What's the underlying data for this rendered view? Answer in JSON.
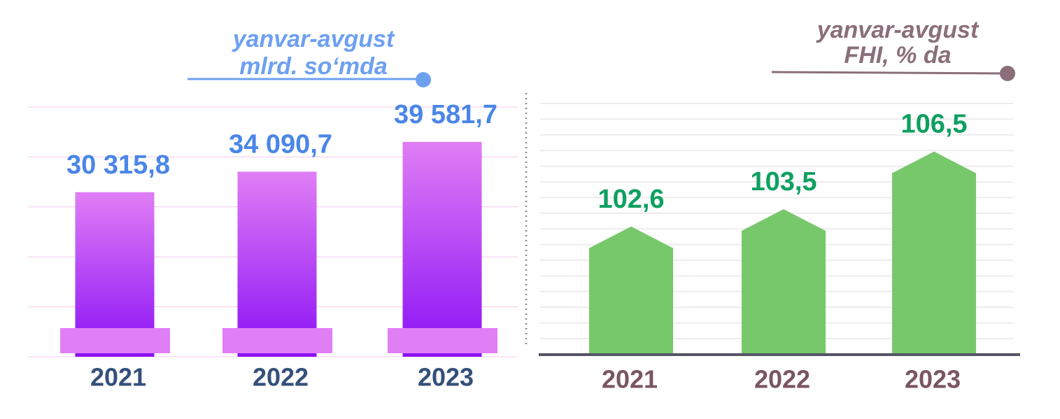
{
  "chart_data": [
    {
      "type": "bar",
      "title": "yanvar-avgust",
      "subtitle": "mlrd. so‘mda",
      "categories": [
        "2021",
        "2022",
        "2023"
      ],
      "values": [
        30315.8,
        34090.7,
        39581.7
      ],
      "value_labels": [
        "30 315,8",
        "34 090,7",
        "39 581,7"
      ],
      "color": "#8a10f5",
      "ylim": [
        0,
        46000
      ]
    },
    {
      "type": "arrow",
      "title": "yanvar-avgust",
      "subtitle": "FHI, % da",
      "categories": [
        "2021",
        "2022",
        "2023"
      ],
      "values": [
        102.6,
        103.5,
        106.5
      ],
      "value_labels": [
        "102,6",
        "103,5",
        "106,5"
      ],
      "color": "#77c86a",
      "ylim": [
        96,
        109
      ]
    }
  ]
}
